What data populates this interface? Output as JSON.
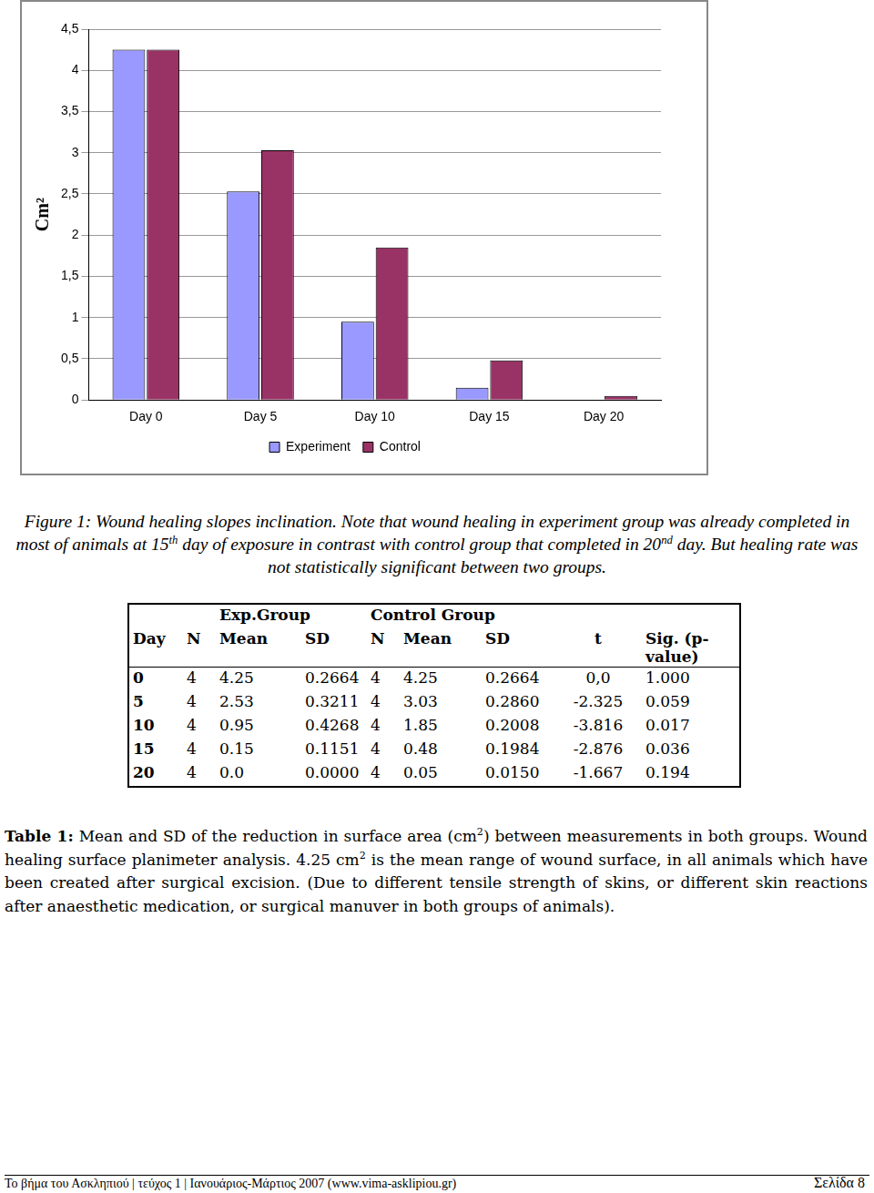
{
  "chart_data": {
    "type": "bar",
    "categories": [
      "Day 0",
      "Day 5",
      "Day 10",
      "Day 15",
      "Day 20"
    ],
    "series": [
      {
        "name": "Experiment",
        "color": "#9999ff",
        "values": [
          4.25,
          2.53,
          0.95,
          0.15,
          0.0
        ]
      },
      {
        "name": "Control",
        "color": "#993366",
        "values": [
          4.25,
          3.03,
          1.85,
          0.48,
          0.05
        ]
      }
    ],
    "y_label": "Cm²",
    "ylim": [
      0,
      4.5
    ],
    "yticks": [
      0,
      {
        "value": 0.5,
        "label": "0,5"
      },
      1,
      {
        "value": 1.5,
        "label": "1,5"
      },
      2,
      {
        "value": 2.5,
        "label": "2,5"
      },
      3,
      {
        "value": 3.5,
        "label": "3,5"
      },
      4,
      {
        "value": 4.5,
        "label": "4,5"
      }
    ],
    "grid": true,
    "legend": "bottom"
  },
  "figure_caption": [
    {
      "text": "Figure 1: Wound healing slopes inclination. Note that wound healing in experiment group was already completed in most of animals at 15"
    },
    {
      "text": "th",
      "sup": true
    },
    {
      "text": " day of exposure in contrast with control group that completed in 20"
    },
    {
      "text": "nd",
      "sup": true
    },
    {
      "text": " day. But healing rate was not statistically significant between two groups."
    }
  ],
  "table": {
    "group_headers": [
      null,
      null,
      "Exp.Group",
      null,
      "Control Group",
      null,
      null,
      null,
      null
    ],
    "columns": [
      "Day",
      "N",
      "Mean",
      "SD",
      "N",
      "Mean",
      "SD",
      "t",
      "Sig. (p-value)"
    ],
    "rows": [
      [
        "0",
        "4",
        "4.25",
        "0.2664",
        "4",
        "4.25",
        "0.2664",
        "0,0",
        "1.000"
      ],
      [
        "5",
        "4",
        "2.53",
        "0.3211",
        "4",
        "3.03",
        "0.2860",
        "-2.325",
        "0.059"
      ],
      [
        "10",
        "4",
        "0.95",
        "0.4268",
        "4",
        "1.85",
        "0.2008",
        "-3.816",
        "0.017"
      ],
      [
        "15",
        "4",
        "0.15",
        "0.1151",
        "4",
        "0.48",
        "0.1984",
        "-2.876",
        "0.036"
      ],
      [
        "20",
        "4",
        "0.0",
        "0.0000",
        "4",
        "0.05",
        "0.0150",
        "-1.667",
        "0.194"
      ]
    ]
  },
  "table_caption": [
    {
      "text": "Table 1:",
      "bold": true
    },
    {
      "text": " Mean and SD of the reduction in surface area (cm"
    },
    {
      "text": "2",
      "sup": true
    },
    {
      "text": ") between measurements in both groups. Wound healing surface planimeter analysis. 4.25 cm"
    },
    {
      "text": "2",
      "sup": true
    },
    {
      "text": " is the mean range of wound surface, in all animals which have been created after surgical excision. (Due to different tensile strength of skins, or different skin reactions after anaesthetic medication, or surgical manuver in both groups of animals)."
    }
  ],
  "footer": {
    "left": "Το βήμα του Ασκληπιού | τεύχος 1 | Ιανουάριος-Μάρτιος 2007 (www.vima-asklipiou.gr)",
    "right": "Σελίδα 8"
  }
}
